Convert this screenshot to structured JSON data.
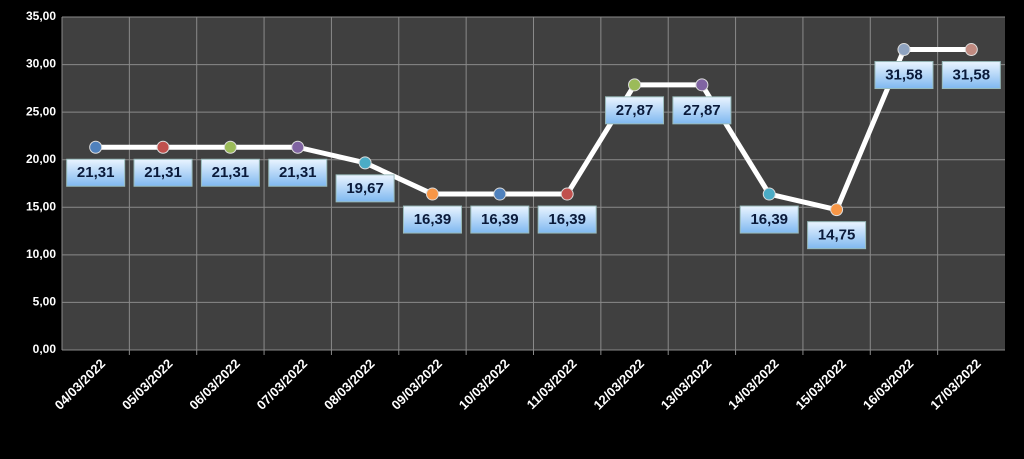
{
  "chart_data": {
    "type": "line",
    "categories": [
      "04/03/2022",
      "05/03/2022",
      "06/03/2022",
      "07/03/2022",
      "08/03/2022",
      "09/03/2022",
      "10/03/2022",
      "11/03/2022",
      "12/03/2022",
      "13/03/2022",
      "14/03/2022",
      "15/03/2022",
      "16/03/2022",
      "17/03/2022"
    ],
    "values": [
      21.31,
      21.31,
      21.31,
      21.31,
      19.67,
      16.39,
      16.39,
      16.39,
      27.87,
      27.87,
      16.39,
      14.75,
      31.58,
      31.58
    ],
    "value_labels": [
      "21,31",
      "21,31",
      "21,31",
      "21,31",
      "19,67",
      "16,39",
      "16,39",
      "16,39",
      "27,87",
      "27,87",
      "16,39",
      "14,75",
      "31,58",
      "31,58"
    ],
    "color": "#ffffff",
    "point_colors": [
      "#4f81bd",
      "#c0504d",
      "#9bbb59",
      "#8064a2",
      "#4bacc6",
      "#f79646",
      "#4f81bd",
      "#c0504d",
      "#9bbb59",
      "#8064a2",
      "#4bacc6",
      "#f79646",
      "#8fa3c0",
      "#c08a80"
    ],
    "ylim": [
      0,
      35
    ],
    "yticks": [
      {
        "value": 0,
        "label": "0,00"
      },
      {
        "value": 5,
        "label": "5,00"
      },
      {
        "value": 10,
        "label": "10,00"
      },
      {
        "value": 15,
        "label": "15,00"
      },
      {
        "value": 20,
        "label": "20,00"
      },
      {
        "value": 25,
        "label": "25,00"
      },
      {
        "value": 30,
        "label": "30,00"
      },
      {
        "value": 35,
        "label": "35,00"
      }
    ],
    "grid": true
  }
}
